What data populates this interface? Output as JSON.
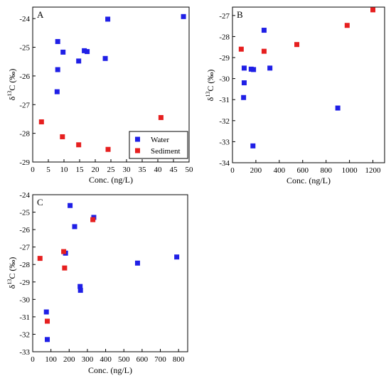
{
  "colors": {
    "water": "#1f1fe6",
    "sediment": "#e61f1f"
  },
  "chart_data": [
    {
      "type": "scatter",
      "panel_label": "A",
      "xlabel": "Conc. (ng/L)",
      "ylabel": "δ13C (‰)",
      "xlim": [
        0,
        50
      ],
      "ylim": [
        -29,
        -23.6
      ],
      "xticks": [
        0,
        5,
        10,
        15,
        20,
        25,
        30,
        35,
        40,
        45,
        50
      ],
      "yticks": [
        -29,
        -28,
        -27,
        -26,
        -25,
        -24
      ],
      "legend": "bottom-right",
      "series": [
        {
          "name": "Water",
          "color": "water",
          "x": [
            8,
            8,
            7.8,
            9.7,
            14.7,
            16.5,
            17.4,
            23.2,
            24,
            48.2
          ],
          "y": [
            -24.8,
            -25.78,
            -26.55,
            -25.17,
            -25.48,
            -25.12,
            -25.15,
            -25.39,
            -24.02,
            -23.93
          ]
        },
        {
          "name": "Sediment",
          "color": "sediment",
          "x": [
            2.8,
            9.5,
            14.7,
            24.1,
            41
          ],
          "y": [
            -27.6,
            -28.12,
            -28.4,
            -28.56,
            -27.45
          ]
        }
      ]
    },
    {
      "type": "scatter",
      "panel_label": "B",
      "xlabel": "Conc. (ng/L)",
      "ylabel": "δ13C (‰)",
      "xlim": [
        0,
        1300
      ],
      "ylim": [
        -34,
        -26.6
      ],
      "xticks": [
        0,
        200,
        400,
        600,
        800,
        1000,
        1200
      ],
      "yticks": [
        -34,
        -33,
        -32,
        -31,
        -30,
        -29,
        -28,
        -27
      ],
      "legend": "none",
      "series": [
        {
          "name": "Water",
          "color": "water",
          "x": [
            95,
            100,
            100,
            160,
            180,
            270,
            320,
            900,
            175
          ],
          "y": [
            -30.9,
            -30.2,
            -29.5,
            -29.55,
            -29.57,
            -27.7,
            -29.5,
            -31.4,
            -33.2
          ]
        },
        {
          "name": "Sediment",
          "color": "sediment",
          "x": [
            75,
            270,
            550,
            980,
            1200
          ],
          "y": [
            -28.6,
            -28.7,
            -28.38,
            -27.47,
            -26.73
          ]
        }
      ]
    },
    {
      "type": "scatter",
      "panel_label": "C",
      "xlabel": "Conc. (ng/L)",
      "ylabel": "δ13C (‰)",
      "xlim": [
        0,
        850
      ],
      "ylim": [
        -33,
        -24
      ],
      "xticks": [
        0,
        100,
        200,
        300,
        400,
        500,
        600,
        700,
        800
      ],
      "yticks": [
        -33,
        -32,
        -31,
        -30,
        -29,
        -28,
        -27,
        -26,
        -25,
        -24
      ],
      "legend": "none",
      "series": [
        {
          "name": "Water",
          "color": "water",
          "x": [
            75,
            80,
            180,
            205,
            230,
            260,
            262,
            335,
            575,
            790
          ],
          "y": [
            -30.72,
            -32.3,
            -27.35,
            -24.62,
            -25.83,
            -29.26,
            -29.48,
            -25.3,
            -27.92,
            -27.57
          ]
        },
        {
          "name": "Sediment",
          "color": "sediment",
          "x": [
            40,
            80,
            170,
            175,
            330
          ],
          "y": [
            -27.65,
            -31.25,
            -27.26,
            -28.2,
            -25.43
          ]
        }
      ]
    }
  ]
}
